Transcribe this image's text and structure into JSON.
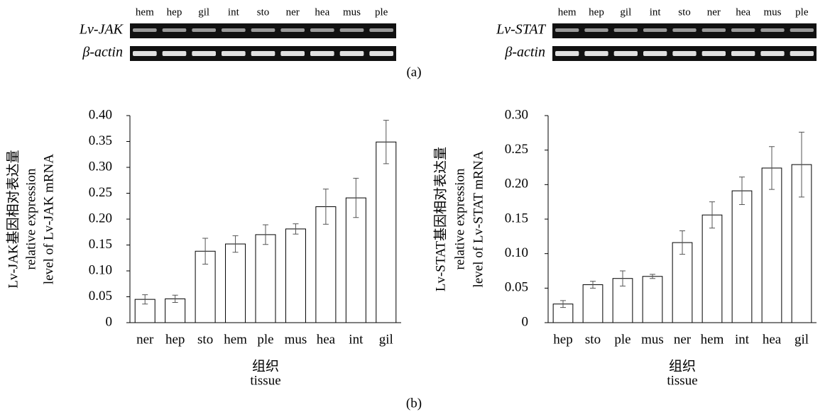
{
  "gels": [
    {
      "lanes": [
        "hem",
        "hep",
        "gil",
        "int",
        "sto",
        "ner",
        "hea",
        "mus",
        "ple"
      ],
      "rows": [
        "Lv-JAK",
        "β-actin"
      ]
    },
    {
      "lanes": [
        "hem",
        "hep",
        "gil",
        "int",
        "sto",
        "ner",
        "hea",
        "mus",
        "ple"
      ],
      "rows": [
        "Lv-STAT",
        "β-actin"
      ]
    }
  ],
  "panel_a": "(a)",
  "panel_b": "(b)",
  "chart_data": [
    {
      "type": "bar",
      "ylabel": [
        "Lv-JAK基因相对表达量",
        "relative expression",
        "level of Lv-JAK mRNA"
      ],
      "xlabel": [
        "组织",
        "tissue"
      ],
      "categories": [
        "ner",
        "hep",
        "sto",
        "hem",
        "ple",
        "mus",
        "hea",
        "int",
        "gil"
      ],
      "values": [
        0.045,
        0.046,
        0.138,
        0.152,
        0.17,
        0.181,
        0.224,
        0.241,
        0.349
      ],
      "errors": [
        0.009,
        0.007,
        0.025,
        0.016,
        0.019,
        0.01,
        0.034,
        0.038,
        0.042
      ],
      "color": "#ffffff",
      "edgecolor": "#000000",
      "ylim": [
        0,
        0.4
      ],
      "yticks": [
        0,
        0.05,
        {
          "value": 0.1,
          "label": "0.10"
        },
        0.15,
        {
          "value": 0.2,
          "label": "0.20"
        },
        0.25,
        {
          "value": 0.3,
          "label": "0.30"
        },
        0.35,
        {
          "value": 0.4,
          "label": "0.40"
        }
      ],
      "grid": false
    },
    {
      "type": "bar",
      "ylabel": [
        "Lv-STAT基因相对表达量",
        "relative expression",
        "level of Lv-STAT mRNA"
      ],
      "xlabel": [
        "组织",
        "tissue"
      ],
      "categories": [
        "hep",
        "sto",
        "ple",
        "mus",
        "ner",
        "hem",
        "int",
        "hea",
        "gil"
      ],
      "values": [
        0.027,
        0.055,
        0.064,
        0.067,
        0.116,
        0.156,
        0.191,
        0.224,
        0.229
      ],
      "errors": [
        0.005,
        0.005,
        0.011,
        0.003,
        0.017,
        0.019,
        0.02,
        0.031,
        0.047
      ],
      "color": "#ffffff",
      "edgecolor": "#000000",
      "ylim": [
        0,
        0.3
      ],
      "yticks": [
        0,
        0.05,
        {
          "value": 0.1,
          "label": "0.10"
        },
        0.15,
        {
          "value": 0.2,
          "label": "0.20"
        },
        0.25,
        {
          "value": 0.3,
          "label": "0.30"
        }
      ],
      "grid": false
    }
  ]
}
